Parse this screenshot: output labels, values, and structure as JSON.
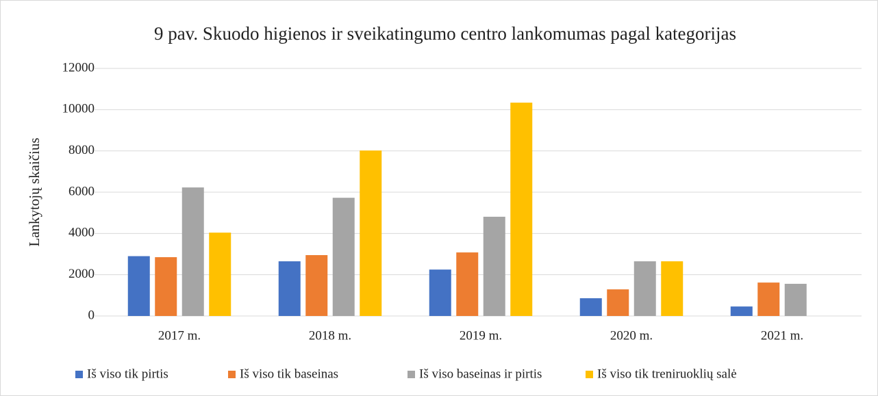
{
  "chart_data": {
    "type": "bar",
    "title": "9 pav. Skuodo higienos ir sveikatingumo centro lankomumas pagal kategorijas",
    "y_label": "Lankytojų skaičius",
    "categories": [
      "2017 m.",
      "2018 m.",
      "2019 m.",
      "2020 m.",
      "2021 m."
    ],
    "series": [
      {
        "name": "Iš viso tik pirtis",
        "color": "#4472c4",
        "values": [
          2900,
          2650,
          2250,
          860,
          460
        ]
      },
      {
        "name": "Iš viso tik baseinas",
        "color": "#ed7d31",
        "values": [
          2850,
          2950,
          3080,
          1290,
          1620
        ]
      },
      {
        "name": "Iš viso baseinas ir pirtis",
        "color": "#a5a5a5",
        "values": [
          6230,
          5730,
          4810,
          2650,
          1560
        ]
      },
      {
        "name": "Iš viso tik treniruoklių salė",
        "color": "#ffc000",
        "values": [
          4040,
          8020,
          10340,
          2650,
          null
        ]
      }
    ],
    "ylim": [
      0,
      12000
    ],
    "yticks": [
      0,
      2000,
      4000,
      6000,
      8000,
      10000,
      12000
    ],
    "grid": true,
    "legend": "bottom"
  }
}
